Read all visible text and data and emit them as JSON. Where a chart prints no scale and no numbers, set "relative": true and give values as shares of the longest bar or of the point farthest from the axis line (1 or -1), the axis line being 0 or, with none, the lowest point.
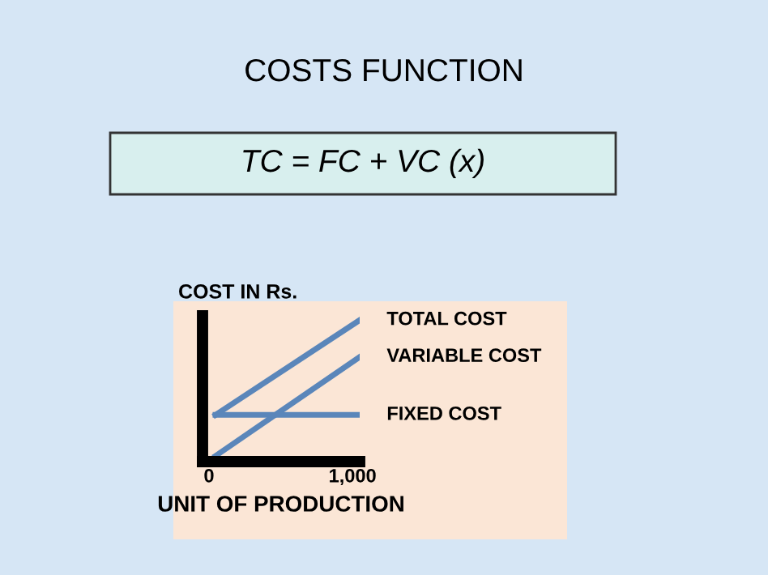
{
  "chart_data": {
    "type": "line",
    "title": "COSTS FUNCTION",
    "annotations": [
      "TC = FC + VC (x)"
    ],
    "xlabel": "UNIT OF PRODUCTION",
    "ylabel": "COST IN Rs.",
    "relative": true,
    "tick_labels": "x",
    "x": [
      45,
      1050
    ],
    "xlim": [
      -45,
      1050
    ],
    "xticks": [
      0,
      {
        "value": 1000,
        "label": "1,000"
      }
    ],
    "grid": false,
    "legend": false,
    "marker": "none",
    "line_style": "solid",
    "series": [
      {
        "name": "TOTAL COST",
        "color": "#5a86ba",
        "values": [
          0.33,
          1
        ]
      },
      {
        "name": "VARIABLE COST",
        "color": "#5a86ba",
        "values": [
          0.04,
          0.74
        ]
      },
      {
        "name": "FIXED COST",
        "color": "#5a86ba",
        "values": [
          0.33,
          0.33
        ]
      }
    ]
  }
}
